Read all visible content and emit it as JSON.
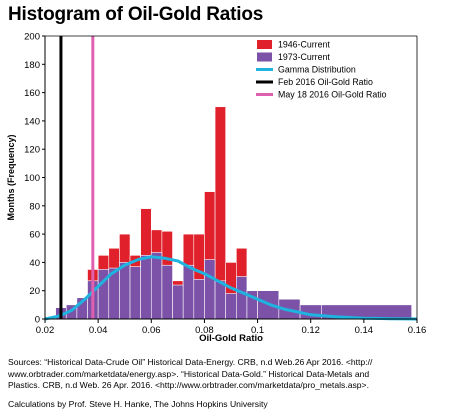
{
  "chart_data": {
    "type": "bar",
    "title": "Histogram of Oil-Gold Ratios",
    "xlabel": "Oil-Gold Ratio",
    "ylabel": "Months (Frequency)",
    "xlim": [
      0.02,
      0.16
    ],
    "ylim": [
      0,
      200
    ],
    "xticks": [
      0.02,
      0.04,
      0.06,
      0.08,
      0.1,
      0.12,
      0.14,
      0.16
    ],
    "xtick_labels": [
      "0.02",
      "0.04",
      "0.06",
      "0.08",
      "0.1",
      "0.12",
      "0.14",
      "0.16"
    ],
    "yticks": [
      0,
      20,
      40,
      60,
      80,
      100,
      120,
      140,
      160,
      180,
      200
    ],
    "legend_position": "top-right",
    "grid": false,
    "series": [
      {
        "name": "1946-Current",
        "color": "#e0202a",
        "type": "bar",
        "bins": [
          {
            "x0": 0.036,
            "x1": 0.04,
            "value": 35
          },
          {
            "x0": 0.04,
            "x1": 0.044,
            "value": 45
          },
          {
            "x0": 0.044,
            "x1": 0.048,
            "value": 50
          },
          {
            "x0": 0.048,
            "x1": 0.052,
            "value": 60
          },
          {
            "x0": 0.052,
            "x1": 0.056,
            "value": 45
          },
          {
            "x0": 0.056,
            "x1": 0.06,
            "value": 78
          },
          {
            "x0": 0.06,
            "x1": 0.064,
            "value": 63
          },
          {
            "x0": 0.064,
            "x1": 0.068,
            "value": 62
          },
          {
            "x0": 0.068,
            "x1": 0.072,
            "value": 27
          },
          {
            "x0": 0.072,
            "x1": 0.076,
            "value": 60
          },
          {
            "x0": 0.076,
            "x1": 0.08,
            "value": 60
          },
          {
            "x0": 0.08,
            "x1": 0.084,
            "value": 90
          },
          {
            "x0": 0.084,
            "x1": 0.088,
            "value": 150
          },
          {
            "x0": 0.088,
            "x1": 0.092,
            "value": 40
          },
          {
            "x0": 0.092,
            "x1": 0.096,
            "value": 50
          }
        ]
      },
      {
        "name": "1973-Current",
        "color": "#7b52a8",
        "type": "bar",
        "bins": [
          {
            "x0": 0.024,
            "x1": 0.028,
            "value": 8
          },
          {
            "x0": 0.028,
            "x1": 0.032,
            "value": 10
          },
          {
            "x0": 0.032,
            "x1": 0.036,
            "value": 15
          },
          {
            "x0": 0.036,
            "x1": 0.04,
            "value": 27
          },
          {
            "x0": 0.04,
            "x1": 0.044,
            "value": 35
          },
          {
            "x0": 0.044,
            "x1": 0.048,
            "value": 36
          },
          {
            "x0": 0.048,
            "x1": 0.052,
            "value": 40
          },
          {
            "x0": 0.052,
            "x1": 0.056,
            "value": 37
          },
          {
            "x0": 0.056,
            "x1": 0.06,
            "value": 45
          },
          {
            "x0": 0.06,
            "x1": 0.064,
            "value": 47
          },
          {
            "x0": 0.064,
            "x1": 0.068,
            "value": 38
          },
          {
            "x0": 0.068,
            "x1": 0.072,
            "value": 24
          },
          {
            "x0": 0.072,
            "x1": 0.076,
            "value": 38
          },
          {
            "x0": 0.076,
            "x1": 0.08,
            "value": 28
          },
          {
            "x0": 0.08,
            "x1": 0.084,
            "value": 42
          },
          {
            "x0": 0.084,
            "x1": 0.088,
            "value": 27
          },
          {
            "x0": 0.088,
            "x1": 0.092,
            "value": 18
          },
          {
            "x0": 0.092,
            "x1": 0.096,
            "value": 30
          },
          {
            "x0": 0.096,
            "x1": 0.1,
            "value": 20
          },
          {
            "x0": 0.1,
            "x1": 0.108,
            "value": 20
          },
          {
            "x0": 0.108,
            "x1": 0.116,
            "value": 14
          },
          {
            "x0": 0.116,
            "x1": 0.124,
            "value": 10
          },
          {
            "x0": 0.124,
            "x1": 0.158,
            "value": 10
          }
        ]
      },
      {
        "name": "Gamma Distribution",
        "color": "#1fb3e0",
        "type": "line",
        "points": [
          [
            0.02,
            0
          ],
          [
            0.025,
            2
          ],
          [
            0.03,
            6
          ],
          [
            0.035,
            14
          ],
          [
            0.04,
            23
          ],
          [
            0.045,
            32
          ],
          [
            0.05,
            38
          ],
          [
            0.055,
            42
          ],
          [
            0.06,
            44
          ],
          [
            0.065,
            43
          ],
          [
            0.07,
            41
          ],
          [
            0.075,
            36
          ],
          [
            0.08,
            32
          ],
          [
            0.085,
            27
          ],
          [
            0.09,
            22
          ],
          [
            0.095,
            18
          ],
          [
            0.1,
            14
          ],
          [
            0.105,
            10
          ],
          [
            0.11,
            7
          ],
          [
            0.115,
            5
          ],
          [
            0.12,
            3
          ],
          [
            0.13,
            1.5
          ],
          [
            0.14,
            0.6
          ],
          [
            0.15,
            0.2
          ],
          [
            0.16,
            0
          ]
        ]
      },
      {
        "name": "Feb 2016 Oil-Gold Ratio",
        "color": "#000000",
        "type": "vline",
        "x": 0.026
      },
      {
        "name": "May 18 2016 Oil-Gold Ratio",
        "color": "#e060b0",
        "type": "vline",
        "x": 0.038
      }
    ]
  },
  "footer": {
    "sources_line1": "Sources: “Historical Data-Crude Oil” Historical Data-Energy. CRB, n.d Web.26 Apr 2016. <http://",
    "sources_line2": "www.orbtrader.com/marketdata/energy.asp>. “Historical Data-Gold.” Historical Data-Metals and",
    "sources_line3": "Plastics. CRB, n.d Web. 26 Apr. 2016. <http://www.orbtrader.com/marketdata/pro_metals.asp>.",
    "credit": "Calculations by Prof. Steve H. Hanke, The Johns Hopkins University"
  }
}
